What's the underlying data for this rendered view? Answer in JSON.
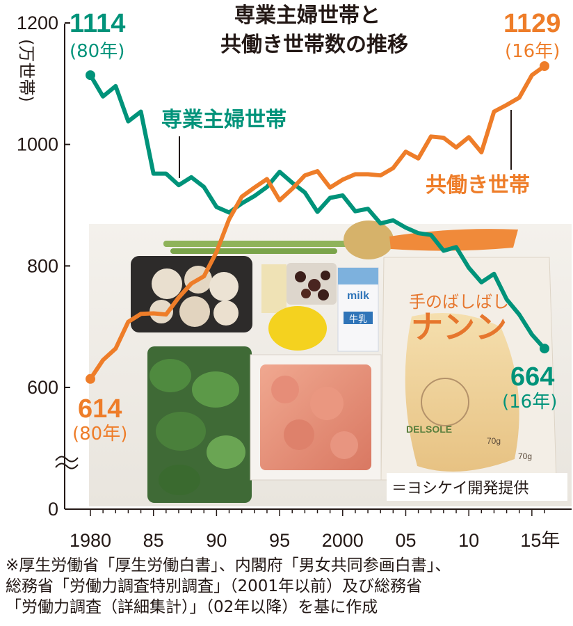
{
  "chart_data": {
    "type": "line",
    "title_lines": [
      "専業主婦世帯と",
      "共働き世帯数の推移"
    ],
    "unit_label": "(万世帯)",
    "x_tick_labels": [
      "1980",
      "85",
      "90",
      "95",
      "2000",
      "05",
      "10",
      "15年"
    ],
    "y_tick_labels": [
      "0",
      "600",
      "800",
      "1000",
      "1200"
    ],
    "ylim": [
      0,
      1200
    ],
    "axis_break": true,
    "x": [
      1980,
      1981,
      1982,
      1983,
      1984,
      1985,
      1986,
      1987,
      1988,
      1989,
      1990,
      1991,
      1992,
      1993,
      1994,
      1995,
      1996,
      1997,
      1998,
      1999,
      2000,
      2001,
      2002,
      2003,
      2004,
      2005,
      2006,
      2007,
      2008,
      2009,
      2010,
      2011,
      2012,
      2013,
      2014,
      2015,
      2016
    ],
    "series": [
      {
        "name": "専業主婦世帯",
        "color": "#00937a",
        "values": [
          1114,
          1079,
          1096,
          1038,
          1054,
          952,
          952,
          933,
          946,
          930,
          897,
          888,
          903,
          915,
          930,
          955,
          937,
          921,
          889,
          912,
          916,
          890,
          894,
          870,
          875,
          863,
          854,
          851,
          825,
          831,
          797,
          773,
          787,
          745,
          720,
          687,
          664
        ]
      },
      {
        "name": "共働き世帯",
        "color": "#ee7d29",
        "values": [
          614,
          645,
          664,
          708,
          721,
          722,
          720,
          748,
          771,
          783,
          823,
          877,
          914,
          929,
          943,
          908,
          927,
          949,
          956,
          929,
          942,
          951,
          951,
          949,
          961,
          988,
          977,
          1013,
          1011,
          995,
          1012,
          987,
          1054,
          1065,
          1077,
          1114,
          1129
        ]
      }
    ],
    "annotations": {
      "green_start": {
        "value": "1114",
        "label": "(80年)"
      },
      "green_end": {
        "value": "664",
        "label": "(16年)"
      },
      "orange_start": {
        "value": "614",
        "label": "(80年)"
      },
      "orange_end": {
        "value": "1129",
        "label": "(16年)"
      }
    },
    "legend_labels": {
      "green": "専業主婦世帯",
      "orange": "共働き世帯"
    }
  },
  "photo_credit": "＝ヨシケイ開発提供",
  "photo_items": [
    "milk",
    "牛乳",
    "手のばしばし",
    "ナンン",
    "DELSOLE",
    "70g",
    "70g"
  ],
  "source_lines": [
    "※厚生労働省「厚生労働白書」、内閣府「男女共同参画白書」、",
    "総務省「労働力調査特別調査」（2001年以前）及び総務省",
    "「労働力調査（詳細集計）」（02年以降）を基に作成"
  ]
}
